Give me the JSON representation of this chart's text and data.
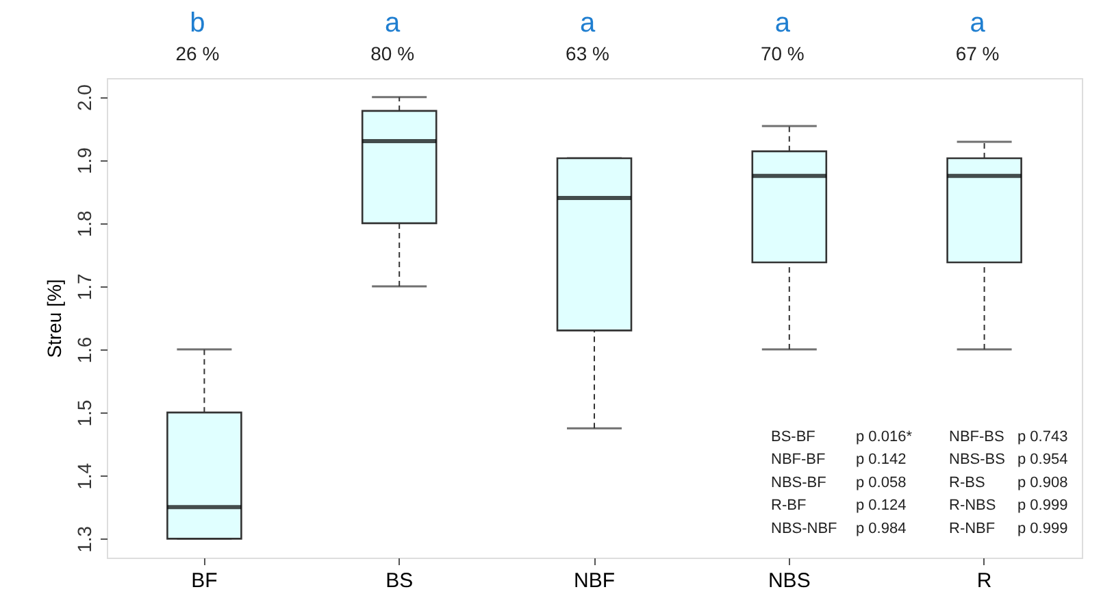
{
  "chart_data": {
    "type": "box",
    "ylabel": "Streu [%]",
    "categories": [
      "BF",
      "BS",
      "NBF",
      "NBS",
      "R"
    ],
    "ylim": [
      1.27,
      2.03
    ],
    "yticks": [
      1.3,
      1.4,
      1.5,
      1.6,
      1.7,
      1.8,
      1.9,
      {
        "value": 2,
        "label": "2.0"
      }
    ],
    "grid": false,
    "series": [
      {
        "color": "#e0ffff",
        "boxes": [
          {
            "low": 1.3,
            "q1": 1.3,
            "median": 1.35,
            "q3": 1.5,
            "high": 1.6
          },
          {
            "low": 1.7,
            "q1": 1.8,
            "median": 1.93,
            "q3": 1.978,
            "high": 2.0
          },
          {
            "low": 1.475,
            "q1": 1.63,
            "median": 1.84,
            "q3": 1.903,
            "high": 1.903
          },
          {
            "low": 1.6,
            "q1": 1.738,
            "median": 1.875,
            "q3": 1.914,
            "high": 1.954
          },
          {
            "low": 1.6,
            "q1": 1.738,
            "median": 1.875,
            "q3": 1.903,
            "high": 1.929
          }
        ]
      }
    ],
    "annotations": [
      "b",
      "a",
      "a",
      "a",
      "a",
      "26 %",
      "80 %",
      "63 %",
      "70 %",
      "67 %",
      "BS-BF p 0.016*",
      "NBF-BF p 0.142",
      "NBS-BF p 0.058",
      "R-BF p 0.124",
      "NBS-NBF p 0.984",
      "NBF-BS p 0.743",
      "NBS-BS p 0.954",
      "R-BS p 0.908",
      "R-NBS p 0.999",
      "R-NBF p 0.999"
    ]
  }
}
